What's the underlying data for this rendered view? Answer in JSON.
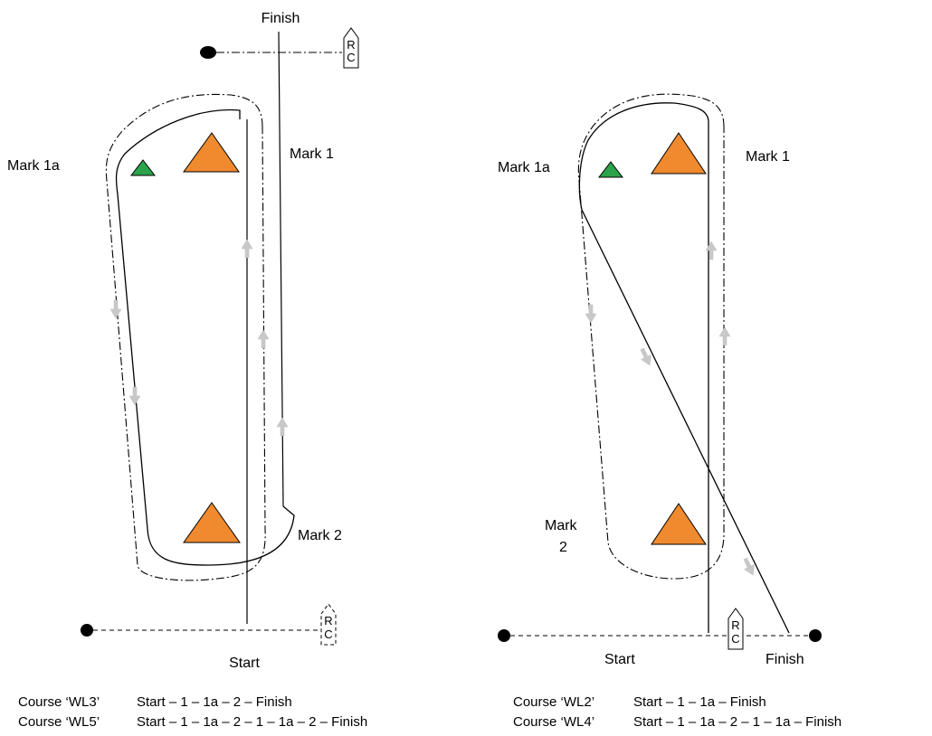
{
  "left": {
    "finish_label": "Finish",
    "start_label": "Start",
    "mark1_label": "Mark 1",
    "mark1a_label": "Mark 1a",
    "mark2_label": "Mark 2",
    "rc_top": {
      "r": "R",
      "c": "C"
    },
    "rc_bottom": {
      "r": "R",
      "c": "C"
    },
    "courses": [
      {
        "name": "Course ‘WL3’",
        "route": "Start – 1 – 1a – 2 – Finish"
      },
      {
        "name": "Course ‘WL5’",
        "route": "Start – 1 – 1a – 2 – 1 – 1a – 2 – Finish"
      }
    ]
  },
  "right": {
    "finish_label": "Finish",
    "start_label": "Start",
    "mark1_label": "Mark 1",
    "mark1a_label": "Mark 1a",
    "mark2_label_line1": "Mark",
    "mark2_label_line2": "2",
    "rc": {
      "r": "R",
      "c": "C"
    },
    "courses": [
      {
        "name": "Course ‘WL2’",
        "route": "Start – 1 – 1a  – Finish"
      },
      {
        "name": "Course ‘WL4’",
        "route": "Start – 1 – 1a – 2 – 1 – 1a  – Finish"
      }
    ]
  },
  "colors": {
    "mark": "#f08a2e",
    "offset_mark": "#2aa34a",
    "arrow": "#c8c8c8"
  }
}
